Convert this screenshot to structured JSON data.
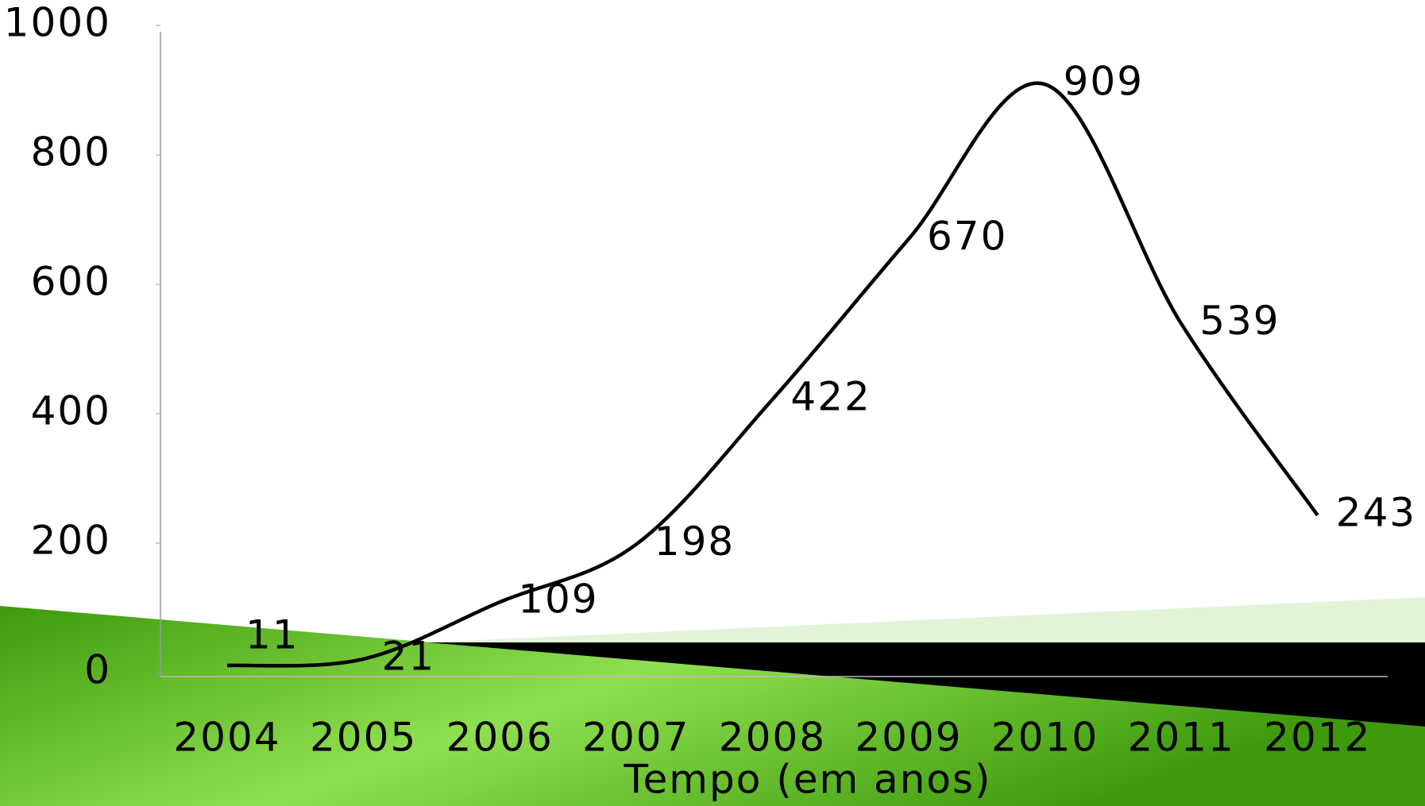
{
  "chart_data": {
    "type": "line",
    "categories": [
      "2004",
      "2005",
      "2006",
      "2007",
      "2008",
      "2009",
      "2010",
      "2011",
      "2012"
    ],
    "series": [
      {
        "color": "#000000",
        "values": [
          11,
          21,
          109,
          198,
          422,
          670,
          909,
          539,
          243
        ]
      }
    ],
    "xlabel": "Tempo (em anos)",
    "ylim": [
      0,
      1000
    ],
    "yticks": [
      0,
      200,
      400,
      600,
      800,
      1000
    ],
    "grid": false,
    "data_labels": true
  }
}
